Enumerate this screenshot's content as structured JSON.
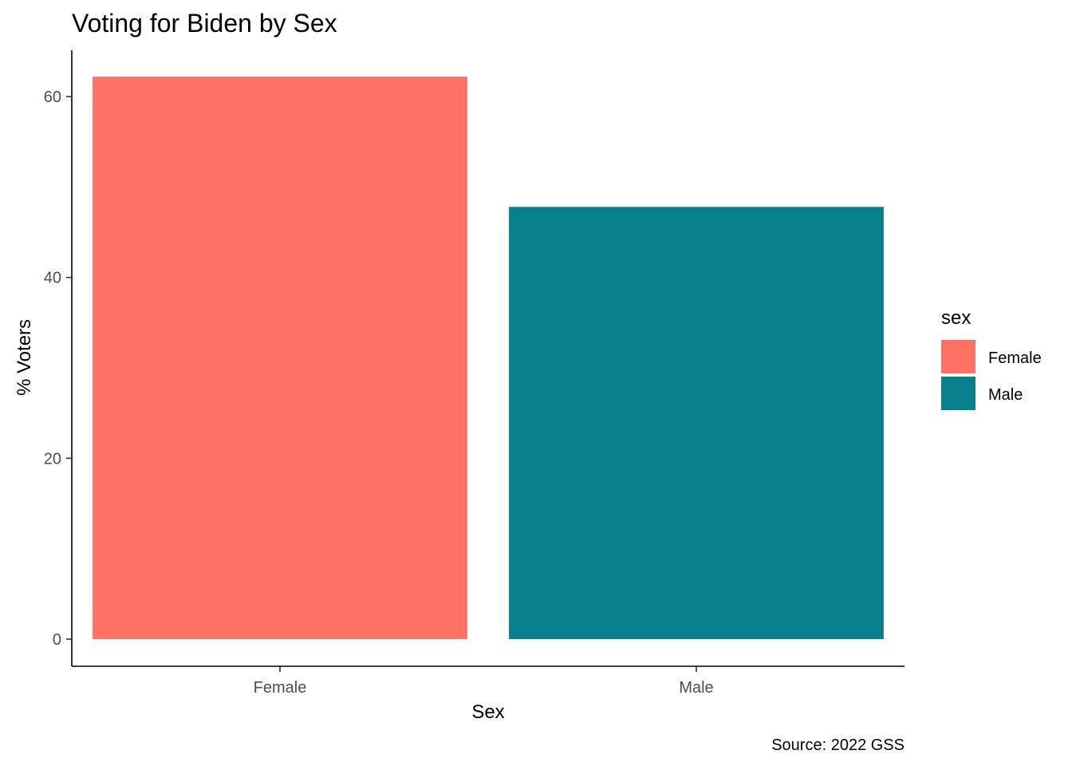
{
  "chart_data": {
    "type": "bar",
    "title": "Voting for Biden by Sex",
    "xlabel": "Sex",
    "ylabel": "% Voters",
    "categories": [
      "Female",
      "Male"
    ],
    "values": [
      62.2,
      47.8
    ],
    "colors": [
      "#FF7164",
      "#077F8C"
    ],
    "ylim": [
      -3,
      65
    ],
    "yticks": [
      0,
      20,
      40,
      60
    ],
    "grid": false,
    "legend": {
      "title": "sex",
      "placement": "right",
      "entries": [
        "Female",
        "Male"
      ]
    },
    "caption": "Source: 2022 GSS"
  }
}
